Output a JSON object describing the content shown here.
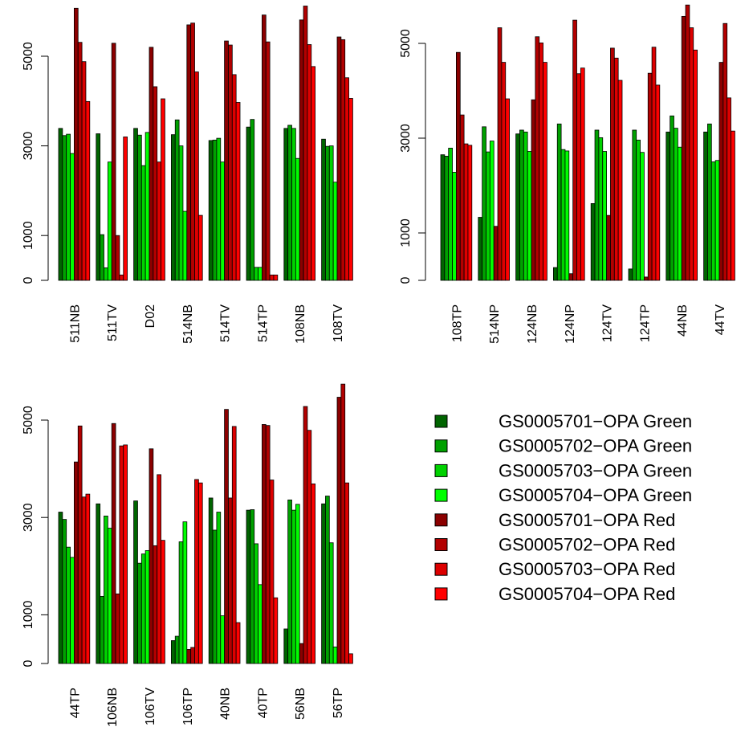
{
  "chart_data": [
    {
      "type": "bar",
      "categories": [
        "511NB",
        "511TV",
        "D02",
        "514NB",
        "514TV",
        "514TP",
        "108NB",
        "108TV"
      ],
      "yticks": [
        0,
        1000,
        3000,
        5000
      ],
      "series": [
        {
          "name": "GS0005701−OPA Green",
          "values": [
            3390,
            3270,
            3390,
            3250,
            3120,
            3420,
            3390,
            3150
          ]
        },
        {
          "name": "GS0005702−OPA Green",
          "values": [
            3230,
            1020,
            3240,
            3580,
            3130,
            3590,
            3460,
            2990
          ]
        },
        {
          "name": "GS0005703−OPA Green",
          "values": [
            3260,
            280,
            2560,
            3000,
            3170,
            290,
            3390,
            3000
          ]
        },
        {
          "name": "GS0005704−OPA Green",
          "values": [
            2830,
            2640,
            3300,
            1540,
            2640,
            290,
            2720,
            2190
          ]
        },
        {
          "name": "GS0005701−OPA Red",
          "values": [
            6070,
            5290,
            5200,
            5700,
            5340,
            5920,
            5810,
            5430
          ]
        },
        {
          "name": "GS0005702−OPA Red",
          "values": [
            5310,
            1000,
            4320,
            5740,
            5250,
            5320,
            6120,
            5370
          ]
        },
        {
          "name": "GS0005703−OPA Red",
          "values": [
            4880,
            120,
            2640,
            4650,
            4590,
            120,
            5260,
            4520
          ]
        },
        {
          "name": "GS0005704−OPA Red",
          "values": [
            3990,
            3200,
            4050,
            1450,
            3970,
            120,
            4770,
            4060
          ]
        }
      ]
    },
    {
      "type": "bar",
      "categories": [
        "108TP",
        "514NP",
        "124NB",
        "124NP",
        "124TV",
        "124TP",
        "44NB",
        "44TV"
      ],
      "yticks": [
        0,
        1000,
        3000,
        5000
      ],
      "series": [
        {
          "name": "GS0005701−OPA Green",
          "values": [
            2650,
            1330,
            3090,
            270,
            1620,
            240,
            3130,
            3130
          ]
        },
        {
          "name": "GS0005702−OPA Green",
          "values": [
            2620,
            3240,
            3170,
            3300,
            3170,
            3170,
            3470,
            3300
          ]
        },
        {
          "name": "GS0005703−OPA Green",
          "values": [
            2790,
            2710,
            3130,
            2760,
            3010,
            2960,
            3210,
            2500
          ]
        },
        {
          "name": "GS0005704−OPA Green",
          "values": [
            2280,
            2940,
            2720,
            2730,
            2720,
            2700,
            2810,
            2530
          ]
        },
        {
          "name": "GS0005701−OPA Red",
          "values": [
            4810,
            1140,
            3810,
            140,
            1370,
            70,
            5570,
            4600
          ]
        },
        {
          "name": "GS0005702−OPA Red",
          "values": [
            3490,
            5330,
            5140,
            5490,
            4900,
            4370,
            5810,
            5420
          ]
        },
        {
          "name": "GS0005703−OPA Red",
          "values": [
            2880,
            4600,
            5010,
            4360,
            4690,
            4920,
            5330,
            3850
          ]
        },
        {
          "name": "GS0005704−OPA Red",
          "values": [
            2850,
            3830,
            4600,
            4480,
            4220,
            4120,
            4860,
            3150
          ]
        }
      ]
    },
    {
      "type": "bar",
      "categories": [
        "44TP",
        "106NB",
        "106TV",
        "106TP",
        "40NB",
        "40TP",
        "56NB",
        "56TP"
      ],
      "yticks": [
        0,
        1000,
        3000,
        5000
      ],
      "series": [
        {
          "name": "GS0005701−OPA Green",
          "values": [
            3110,
            3280,
            3340,
            470,
            3400,
            3150,
            710,
            3280
          ]
        },
        {
          "name": "GS0005702−OPA Green",
          "values": [
            2960,
            1380,
            2060,
            560,
            2740,
            3160,
            3360,
            3440
          ]
        },
        {
          "name": "GS0005703−OPA Green",
          "values": [
            2390,
            3030,
            2250,
            2500,
            3110,
            2460,
            3150,
            2480
          ]
        },
        {
          "name": "GS0005704−OPA Green",
          "values": [
            2180,
            2780,
            2320,
            2910,
            980,
            1620,
            3270,
            340
          ]
        },
        {
          "name": "GS0005701−OPA Red",
          "values": [
            4140,
            4930,
            4410,
            290,
            5220,
            4910,
            410,
            5470
          ]
        },
        {
          "name": "GS0005702−OPA Red",
          "values": [
            4880,
            1430,
            2420,
            330,
            3400,
            4890,
            5280,
            5740
          ]
        },
        {
          "name": "GS0005703−OPA Red",
          "values": [
            3420,
            4470,
            3880,
            3780,
            4870,
            3770,
            4790,
            3710
          ]
        },
        {
          "name": "GS0005704−OPA Red",
          "values": [
            3480,
            4490,
            2530,
            3710,
            840,
            1350,
            3690,
            200
          ]
        }
      ]
    }
  ],
  "legend": {
    "colors": [
      "#006400",
      "#00A000",
      "#00D200",
      "#00FF00",
      "#8B0000",
      "#B20000",
      "#DD0000",
      "#FF0000"
    ],
    "labels": [
      "GS0005701−OPA Green",
      "GS0005702−OPA Green",
      "GS0005703−OPA Green",
      "GS0005704−OPA Green",
      "GS0005701−OPA Red",
      "GS0005702−OPA Red",
      "GS0005703−OPA Red",
      "GS0005704−OPA Red"
    ]
  }
}
